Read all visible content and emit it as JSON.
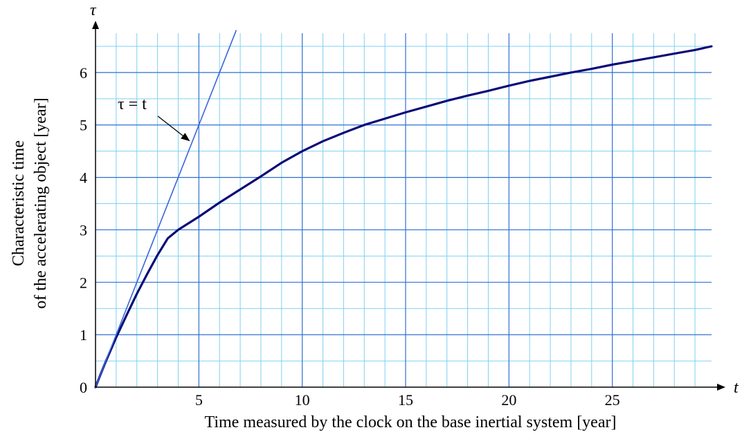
{
  "chart_data": {
    "type": "line",
    "xlabel": "Time measured by the clock on the base inertial system [year]",
    "ylabel_line1": "Characteristic time",
    "ylabel_line2": "of the accelerating object [year]",
    "x_axis_symbol": "t",
    "y_axis_symbol": "τ",
    "xlim": [
      0,
      29.8
    ],
    "ylim": [
      0,
      6.75
    ],
    "x_ticks": [
      5,
      10,
      15,
      20,
      25
    ],
    "y_ticks": [
      0,
      1,
      2,
      3,
      4,
      5,
      6
    ],
    "grid": true,
    "minor_step": 1,
    "major_x_step": 5,
    "major_y_step": 1,
    "series": [
      {
        "name": "",
        "color": "#0a0a78",
        "x": [
          0,
          0.25,
          0.5,
          0.75,
          1,
          1.5,
          2,
          2.5,
          3,
          3.5,
          4,
          5,
          6,
          7,
          8,
          9,
          10,
          11,
          12,
          13,
          14,
          15,
          16,
          17,
          18,
          19,
          20,
          21,
          22,
          23,
          24,
          25,
          26,
          27,
          28,
          29,
          29.8
        ],
        "y": [
          0,
          0.25,
          0.49,
          0.72,
          0.95,
          1.37,
          1.78,
          2.16,
          2.52,
          2.84,
          3.0,
          3.25,
          3.52,
          3.77,
          4.02,
          4.28,
          4.5,
          4.69,
          4.85,
          5.0,
          5.12,
          5.24,
          5.35,
          5.46,
          5.56,
          5.65,
          5.75,
          5.84,
          5.92,
          6.0,
          6.07,
          6.15,
          6.22,
          6.29,
          6.36,
          6.43,
          6.5
        ]
      },
      {
        "name": "",
        "color": "#3a64d8",
        "x": [
          0,
          6.8
        ],
        "y": [
          0,
          6.8
        ]
      }
    ],
    "annotations": [
      {
        "text": "τ = t",
        "points_to": {
          "x": 4.4,
          "y": 4.7
        }
      }
    ]
  }
}
